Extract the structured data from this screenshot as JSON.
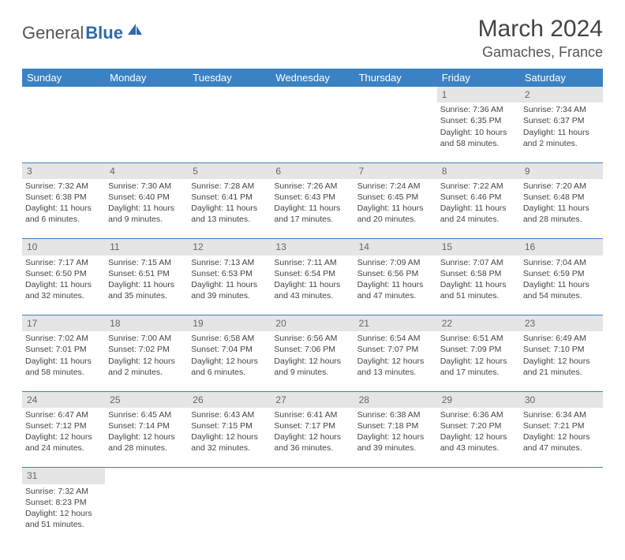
{
  "brand": {
    "part1": "General",
    "part2": "Blue"
  },
  "title": "March 2024",
  "location": "Gamaches, France",
  "colors": {
    "header_bg": "#3b82c4",
    "header_text": "#ffffff",
    "daynum_bg": "#e5e5e5",
    "rule": "#3b82c4",
    "brand_blue": "#2f6aa8",
    "text": "#444444"
  },
  "day_headers": [
    "Sunday",
    "Monday",
    "Tuesday",
    "Wednesday",
    "Thursday",
    "Friday",
    "Saturday"
  ],
  "weeks": [
    {
      "nums": [
        "",
        "",
        "",
        "",
        "",
        "1",
        "2"
      ],
      "cells": [
        null,
        null,
        null,
        null,
        null,
        {
          "sunrise": "Sunrise: 7:36 AM",
          "sunset": "Sunset: 6:35 PM",
          "day1": "Daylight: 10 hours",
          "day2": "and 58 minutes."
        },
        {
          "sunrise": "Sunrise: 7:34 AM",
          "sunset": "Sunset: 6:37 PM",
          "day1": "Daylight: 11 hours",
          "day2": "and 2 minutes."
        }
      ]
    },
    {
      "nums": [
        "3",
        "4",
        "5",
        "6",
        "7",
        "8",
        "9"
      ],
      "cells": [
        {
          "sunrise": "Sunrise: 7:32 AM",
          "sunset": "Sunset: 6:38 PM",
          "day1": "Daylight: 11 hours",
          "day2": "and 6 minutes."
        },
        {
          "sunrise": "Sunrise: 7:30 AM",
          "sunset": "Sunset: 6:40 PM",
          "day1": "Daylight: 11 hours",
          "day2": "and 9 minutes."
        },
        {
          "sunrise": "Sunrise: 7:28 AM",
          "sunset": "Sunset: 6:41 PM",
          "day1": "Daylight: 11 hours",
          "day2": "and 13 minutes."
        },
        {
          "sunrise": "Sunrise: 7:26 AM",
          "sunset": "Sunset: 6:43 PM",
          "day1": "Daylight: 11 hours",
          "day2": "and 17 minutes."
        },
        {
          "sunrise": "Sunrise: 7:24 AM",
          "sunset": "Sunset: 6:45 PM",
          "day1": "Daylight: 11 hours",
          "day2": "and 20 minutes."
        },
        {
          "sunrise": "Sunrise: 7:22 AM",
          "sunset": "Sunset: 6:46 PM",
          "day1": "Daylight: 11 hours",
          "day2": "and 24 minutes."
        },
        {
          "sunrise": "Sunrise: 7:20 AM",
          "sunset": "Sunset: 6:48 PM",
          "day1": "Daylight: 11 hours",
          "day2": "and 28 minutes."
        }
      ]
    },
    {
      "nums": [
        "10",
        "11",
        "12",
        "13",
        "14",
        "15",
        "16"
      ],
      "cells": [
        {
          "sunrise": "Sunrise: 7:17 AM",
          "sunset": "Sunset: 6:50 PM",
          "day1": "Daylight: 11 hours",
          "day2": "and 32 minutes."
        },
        {
          "sunrise": "Sunrise: 7:15 AM",
          "sunset": "Sunset: 6:51 PM",
          "day1": "Daylight: 11 hours",
          "day2": "and 35 minutes."
        },
        {
          "sunrise": "Sunrise: 7:13 AM",
          "sunset": "Sunset: 6:53 PM",
          "day1": "Daylight: 11 hours",
          "day2": "and 39 minutes."
        },
        {
          "sunrise": "Sunrise: 7:11 AM",
          "sunset": "Sunset: 6:54 PM",
          "day1": "Daylight: 11 hours",
          "day2": "and 43 minutes."
        },
        {
          "sunrise": "Sunrise: 7:09 AM",
          "sunset": "Sunset: 6:56 PM",
          "day1": "Daylight: 11 hours",
          "day2": "and 47 minutes."
        },
        {
          "sunrise": "Sunrise: 7:07 AM",
          "sunset": "Sunset: 6:58 PM",
          "day1": "Daylight: 11 hours",
          "day2": "and 51 minutes."
        },
        {
          "sunrise": "Sunrise: 7:04 AM",
          "sunset": "Sunset: 6:59 PM",
          "day1": "Daylight: 11 hours",
          "day2": "and 54 minutes."
        }
      ]
    },
    {
      "nums": [
        "17",
        "18",
        "19",
        "20",
        "21",
        "22",
        "23"
      ],
      "cells": [
        {
          "sunrise": "Sunrise: 7:02 AM",
          "sunset": "Sunset: 7:01 PM",
          "day1": "Daylight: 11 hours",
          "day2": "and 58 minutes."
        },
        {
          "sunrise": "Sunrise: 7:00 AM",
          "sunset": "Sunset: 7:02 PM",
          "day1": "Daylight: 12 hours",
          "day2": "and 2 minutes."
        },
        {
          "sunrise": "Sunrise: 6:58 AM",
          "sunset": "Sunset: 7:04 PM",
          "day1": "Daylight: 12 hours",
          "day2": "and 6 minutes."
        },
        {
          "sunrise": "Sunrise: 6:56 AM",
          "sunset": "Sunset: 7:06 PM",
          "day1": "Daylight: 12 hours",
          "day2": "and 9 minutes."
        },
        {
          "sunrise": "Sunrise: 6:54 AM",
          "sunset": "Sunset: 7:07 PM",
          "day1": "Daylight: 12 hours",
          "day2": "and 13 minutes."
        },
        {
          "sunrise": "Sunrise: 6:51 AM",
          "sunset": "Sunset: 7:09 PM",
          "day1": "Daylight: 12 hours",
          "day2": "and 17 minutes."
        },
        {
          "sunrise": "Sunrise: 6:49 AM",
          "sunset": "Sunset: 7:10 PM",
          "day1": "Daylight: 12 hours",
          "day2": "and 21 minutes."
        }
      ]
    },
    {
      "nums": [
        "24",
        "25",
        "26",
        "27",
        "28",
        "29",
        "30"
      ],
      "cells": [
        {
          "sunrise": "Sunrise: 6:47 AM",
          "sunset": "Sunset: 7:12 PM",
          "day1": "Daylight: 12 hours",
          "day2": "and 24 minutes."
        },
        {
          "sunrise": "Sunrise: 6:45 AM",
          "sunset": "Sunset: 7:14 PM",
          "day1": "Daylight: 12 hours",
          "day2": "and 28 minutes."
        },
        {
          "sunrise": "Sunrise: 6:43 AM",
          "sunset": "Sunset: 7:15 PM",
          "day1": "Daylight: 12 hours",
          "day2": "and 32 minutes."
        },
        {
          "sunrise": "Sunrise: 6:41 AM",
          "sunset": "Sunset: 7:17 PM",
          "day1": "Daylight: 12 hours",
          "day2": "and 36 minutes."
        },
        {
          "sunrise": "Sunrise: 6:38 AM",
          "sunset": "Sunset: 7:18 PM",
          "day1": "Daylight: 12 hours",
          "day2": "and 39 minutes."
        },
        {
          "sunrise": "Sunrise: 6:36 AM",
          "sunset": "Sunset: 7:20 PM",
          "day1": "Daylight: 12 hours",
          "day2": "and 43 minutes."
        },
        {
          "sunrise": "Sunrise: 6:34 AM",
          "sunset": "Sunset: 7:21 PM",
          "day1": "Daylight: 12 hours",
          "day2": "and 47 minutes."
        }
      ]
    },
    {
      "nums": [
        "31",
        "",
        "",
        "",
        "",
        "",
        ""
      ],
      "cells": [
        {
          "sunrise": "Sunrise: 7:32 AM",
          "sunset": "Sunset: 8:23 PM",
          "day1": "Daylight: 12 hours",
          "day2": "and 51 minutes."
        },
        null,
        null,
        null,
        null,
        null,
        null
      ]
    }
  ]
}
